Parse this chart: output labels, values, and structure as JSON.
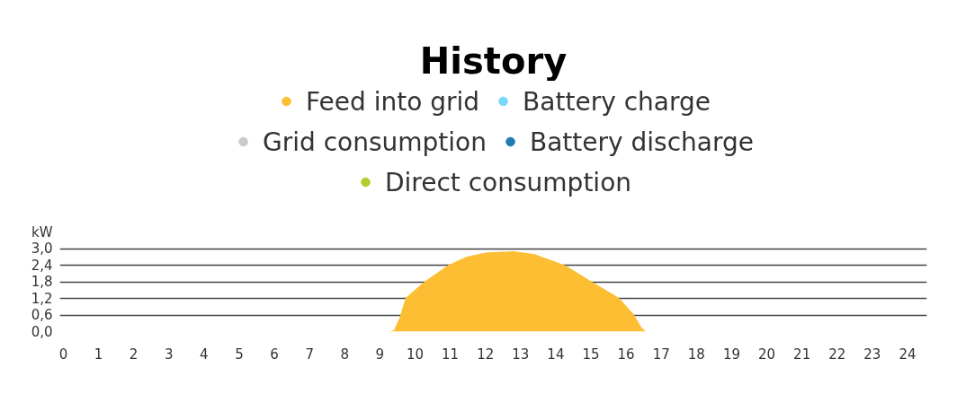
{
  "chart_data": {
    "type": "area",
    "title": "History",
    "legend": "top",
    "x": [
      9.26,
      9.4,
      9.56,
      9.73,
      10.26,
      10.94,
      11.45,
      12.04,
      12.81,
      13.4,
      14.26,
      15.03,
      15.8,
      16.22,
      16.44,
      16.56
    ],
    "series": [
      {
        "name": "Feed into grid",
        "color": "#fdbe33",
        "values": [
          0,
          0.05,
          0.5,
          1.22,
          1.8,
          2.4,
          2.7,
          2.86,
          2.9,
          2.8,
          2.4,
          1.8,
          1.22,
          0.62,
          0.15,
          0
        ]
      },
      {
        "name": "Battery charge",
        "color": "#7ad7fb",
        "values": [
          null,
          null,
          null,
          null,
          null,
          null,
          null,
          null,
          null,
          null,
          null,
          null,
          null,
          null,
          null,
          null
        ]
      },
      {
        "name": "Grid consumption",
        "color": "#c8ccca",
        "values": [
          null,
          null,
          null,
          null,
          null,
          null,
          null,
          null,
          null,
          null,
          null,
          null,
          null,
          null,
          null,
          null
        ]
      },
      {
        "name": "Battery discharge",
        "color": "#1f7bb5",
        "values": [
          null,
          null,
          null,
          null,
          null,
          null,
          null,
          null,
          null,
          null,
          null,
          null,
          null,
          null,
          null,
          null
        ]
      },
      {
        "name": "Direct consumption",
        "color": "#b5cc2e",
        "values": [
          null,
          null,
          null,
          null,
          null,
          null,
          null,
          null,
          null,
          null,
          null,
          null,
          null,
          null,
          null,
          null
        ]
      }
    ],
    "xlim": [
      -0.1,
      24.55
    ],
    "xticks": [
      0,
      1,
      2,
      3,
      4,
      5,
      6,
      7,
      8,
      9,
      10,
      11,
      12,
      13,
      14,
      15,
      16,
      17,
      18,
      19,
      20,
      21,
      22,
      23,
      24
    ],
    "ylim": [
      0,
      3.6
    ],
    "yticks": [
      {
        "value": 0,
        "label": "0,0"
      },
      {
        "value": 0.6,
        "label": "0,6"
      },
      {
        "value": 1.2,
        "label": "1,2"
      },
      {
        "value": 1.8,
        "label": "1,8"
      },
      {
        "value": 2.4,
        "label": "2,4"
      },
      {
        "value": 3.0,
        "label": "3,0"
      },
      {
        "value": 3.6,
        "label": "kW"
      }
    ],
    "grid": "y"
  }
}
